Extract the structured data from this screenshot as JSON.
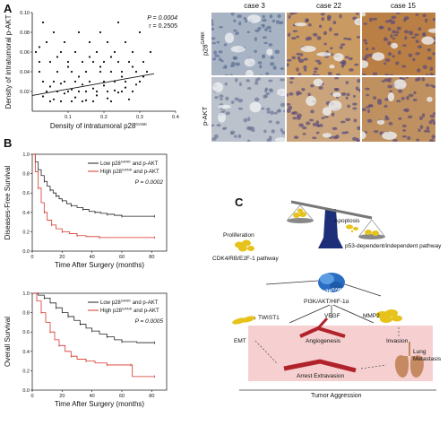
{
  "panel_labels": {
    "a": "A",
    "b": "B",
    "c": "C"
  },
  "chart_data": [
    {
      "type": "scatter",
      "id": "scatter",
      "xlabel": "Density of intratumoral p28",
      "xlabel_sup": "GANK",
      "ylabel": "Density of intratumoral p-AKT",
      "xlim": [
        0,
        0.4
      ],
      "ylim": [
        0,
        0.1
      ],
      "xticks": [
        "0.1",
        "0.2",
        "0.3",
        "0.4"
      ],
      "xtick_vals": [
        0.1,
        0.2,
        0.3,
        0.4
      ],
      "yticks": [
        "0.02",
        "0.04",
        "0.06",
        "0.08",
        "0.10"
      ],
      "ytick_vals": [
        0.02,
        0.04,
        0.06,
        0.08,
        0.1
      ],
      "stats": [
        "P = 0.0004",
        "r = 0.2505"
      ],
      "fit": [
        [
          0,
          0.016
        ],
        [
          0.34,
          0.038
        ]
      ],
      "points": [
        [
          0.01,
          0.06
        ],
        [
          0.02,
          0.04
        ],
        [
          0.02,
          0.05
        ],
        [
          0.03,
          0.09
        ],
        [
          0.03,
          0.03
        ],
        [
          0.04,
          0.07
        ],
        [
          0.04,
          0.02
        ],
        [
          0.05,
          0.05
        ],
        [
          0.05,
          0.01
        ],
        [
          0.06,
          0.08
        ],
        [
          0.06,
          0.03
        ],
        [
          0.07,
          0.04
        ],
        [
          0.07,
          0.02
        ],
        [
          0.08,
          0.06
        ],
        [
          0.08,
          0.01
        ],
        [
          0.09,
          0.03
        ],
        [
          0.09,
          0.07
        ],
        [
          0.1,
          0.02
        ],
        [
          0.1,
          0.05
        ],
        [
          0.11,
          0.04
        ],
        [
          0.11,
          0.01
        ],
        [
          0.12,
          0.06
        ],
        [
          0.12,
          0.03
        ],
        [
          0.13,
          0.02
        ],
        [
          0.13,
          0.08
        ],
        [
          0.14,
          0.05
        ],
        [
          0.14,
          0.01
        ],
        [
          0.15,
          0.04
        ],
        [
          0.15,
          0.02
        ],
        [
          0.16,
          0.07
        ],
        [
          0.16,
          0.03
        ],
        [
          0.17,
          0.05
        ],
        [
          0.17,
          0.01
        ],
        [
          0.18,
          0.06
        ],
        [
          0.18,
          0.02
        ],
        [
          0.19,
          0.04
        ],
        [
          0.19,
          0.08
        ],
        [
          0.2,
          0.03
        ],
        [
          0.2,
          0.05
        ],
        [
          0.21,
          0.02
        ],
        [
          0.21,
          0.07
        ],
        [
          0.22,
          0.04
        ],
        [
          0.22,
          0.01
        ],
        [
          0.23,
          0.06
        ],
        [
          0.23,
          0.03
        ],
        [
          0.24,
          0.05
        ],
        [
          0.24,
          0.09
        ],
        [
          0.25,
          0.02
        ],
        [
          0.25,
          0.04
        ],
        [
          0.26,
          0.07
        ],
        [
          0.26,
          0.03
        ],
        [
          0.27,
          0.05
        ],
        [
          0.28,
          0.02
        ],
        [
          0.28,
          0.06
        ],
        [
          0.29,
          0.04
        ],
        [
          0.3,
          0.03
        ],
        [
          0.3,
          0.08
        ],
        [
          0.31,
          0.05
        ],
        [
          0.32,
          0.04
        ],
        [
          0.33,
          0.06
        ],
        [
          0.03,
          0.015
        ],
        [
          0.06,
          0.012
        ],
        [
          0.09,
          0.018
        ],
        [
          0.12,
          0.014
        ],
        [
          0.15,
          0.011
        ],
        [
          0.18,
          0.016
        ],
        [
          0.21,
          0.013
        ],
        [
          0.24,
          0.019
        ],
        [
          0.27,
          0.012
        ],
        [
          0.05,
          0.025
        ],
        [
          0.08,
          0.028
        ],
        [
          0.11,
          0.022
        ],
        [
          0.14,
          0.027
        ],
        [
          0.17,
          0.023
        ],
        [
          0.2,
          0.026
        ],
        [
          0.23,
          0.021
        ],
        [
          0.26,
          0.024
        ],
        [
          0.29,
          0.027
        ],
        [
          0.02,
          0.065
        ],
        [
          0.07,
          0.055
        ],
        [
          0.1,
          0.045
        ],
        [
          0.13,
          0.035
        ],
        [
          0.16,
          0.055
        ],
        [
          0.19,
          0.045
        ],
        [
          0.22,
          0.055
        ],
        [
          0.25,
          0.035
        ],
        [
          0.28,
          0.045
        ],
        [
          0.31,
          0.035
        ]
      ]
    },
    {
      "type": "line",
      "id": "dfs",
      "xlabel": "Time After Surgery (months)",
      "ylabel": "Diseases-Free Survival",
      "xlim": [
        0,
        90
      ],
      "ylim": [
        0,
        1.0
      ],
      "xticks": [
        "0",
        "20",
        "40",
        "60",
        "80"
      ],
      "xtick_vals": [
        0,
        20,
        40,
        60,
        80
      ],
      "yticks": [
        "0.0",
        "0.2",
        "0.4",
        "0.6",
        "0.8",
        "1.0"
      ],
      "ytick_vals": [
        0,
        0.2,
        0.4,
        0.6,
        0.8,
        1.0
      ],
      "p_value": "P = 0.0002",
      "series": [
        {
          "name": "Low p28 and p-AKT",
          "sup": "GANK",
          "color": "#222222",
          "points": [
            [
              0,
              1.0
            ],
            [
              2,
              0.92
            ],
            [
              4,
              0.84
            ],
            [
              6,
              0.78
            ],
            [
              8,
              0.72
            ],
            [
              10,
              0.67
            ],
            [
              12,
              0.63
            ],
            [
              14,
              0.6
            ],
            [
              16,
              0.57
            ],
            [
              18,
              0.54
            ],
            [
              20,
              0.52
            ],
            [
              23,
              0.49
            ],
            [
              26,
              0.47
            ],
            [
              30,
              0.45
            ],
            [
              34,
              0.43
            ],
            [
              38,
              0.41
            ],
            [
              42,
              0.4
            ],
            [
              46,
              0.39
            ],
            [
              50,
              0.38
            ],
            [
              55,
              0.37
            ],
            [
              60,
              0.36
            ],
            [
              70,
              0.36
            ],
            [
              82,
              0.36
            ]
          ]
        },
        {
          "name": "High p28 and p-AKT",
          "sup": "GANK",
          "color": "#d8362a",
          "points": [
            [
              0,
              1.0
            ],
            [
              2,
              0.82
            ],
            [
              4,
              0.65
            ],
            [
              6,
              0.5
            ],
            [
              8,
              0.4
            ],
            [
              10,
              0.32
            ],
            [
              13,
              0.27
            ],
            [
              16,
              0.23
            ],
            [
              20,
              0.2
            ],
            [
              25,
              0.18
            ],
            [
              30,
              0.16
            ],
            [
              36,
              0.15
            ],
            [
              45,
              0.14
            ],
            [
              60,
              0.14
            ],
            [
              82,
              0.14
            ]
          ]
        }
      ]
    },
    {
      "type": "line",
      "id": "os",
      "xlabel": "Time After Surgery (months)",
      "ylabel": "Overall Survival",
      "xlim": [
        0,
        90
      ],
      "ylim": [
        0,
        1.0
      ],
      "xticks": [
        "0",
        "20",
        "40",
        "60",
        "80"
      ],
      "xtick_vals": [
        0,
        20,
        40,
        60,
        80
      ],
      "yticks": [
        "0.0",
        "0.2",
        "0.4",
        "0.6",
        "0.8",
        "1.0"
      ],
      "ytick_vals": [
        0,
        0.2,
        0.4,
        0.6,
        0.8,
        1.0
      ],
      "p_value": "P = 0.0005",
      "series": [
        {
          "name": "Low p28 and p-AKT",
          "sup": "GANK",
          "color": "#222222",
          "points": [
            [
              0,
              1.0
            ],
            [
              4,
              0.98
            ],
            [
              8,
              0.95
            ],
            [
              12,
              0.9
            ],
            [
              16,
              0.85
            ],
            [
              20,
              0.8
            ],
            [
              24,
              0.76
            ],
            [
              28,
              0.72
            ],
            [
              32,
              0.68
            ],
            [
              36,
              0.64
            ],
            [
              40,
              0.61
            ],
            [
              45,
              0.58
            ],
            [
              50,
              0.55
            ],
            [
              55,
              0.52
            ],
            [
              60,
              0.5
            ],
            [
              70,
              0.49
            ],
            [
              82,
              0.49
            ]
          ]
        },
        {
          "name": "High p28 and p-AKT",
          "sup": "GANK",
          "color": "#d8362a",
          "points": [
            [
              0,
              1.0
            ],
            [
              3,
              0.92
            ],
            [
              6,
              0.8
            ],
            [
              9,
              0.7
            ],
            [
              12,
              0.6
            ],
            [
              15,
              0.52
            ],
            [
              18,
              0.46
            ],
            [
              22,
              0.4
            ],
            [
              26,
              0.35
            ],
            [
              30,
              0.32
            ],
            [
              36,
              0.3
            ],
            [
              42,
              0.28
            ],
            [
              50,
              0.26
            ],
            [
              60,
              0.26
            ],
            [
              66,
              0.26
            ],
            [
              67,
              0.14
            ],
            [
              82,
              0.14
            ]
          ]
        }
      ]
    }
  ],
  "ihc": {
    "cases": [
      "case 3",
      "case 22",
      "case 15"
    ],
    "rows": [
      "p28",
      "p-AKT"
    ],
    "row_sups": [
      "GANK",
      ""
    ],
    "colors": [
      [
        "#a8b4c4",
        "#c99a62",
        "#b97f45"
      ],
      [
        "#bcc2cc",
        "#c9a47c",
        "#bf9060"
      ]
    ]
  },
  "diagram": {
    "apoptosis": "Apoptosis",
    "proliferation": "Proliferation",
    "p53": "p53-dependent/independent pathway",
    "cdk4": "CDK4/RB/E2F-1 pathway",
    "center": "p28",
    "center_sup": "GANK",
    "pi3k": "PI3K/AKT/HIF-1α",
    "twist1": "TWIST1",
    "vegf": "VEGF",
    "mmp2": "MMP2",
    "emt": "EMT",
    "angiogenesis": "Angiogenesis",
    "invasion": "Invasion",
    "lung_metastasis": "Lung\nMetastasis",
    "arrest": "Arrest Extravasion",
    "tumor": "Tumor Aggression",
    "pink": "#f6d0d0"
  }
}
